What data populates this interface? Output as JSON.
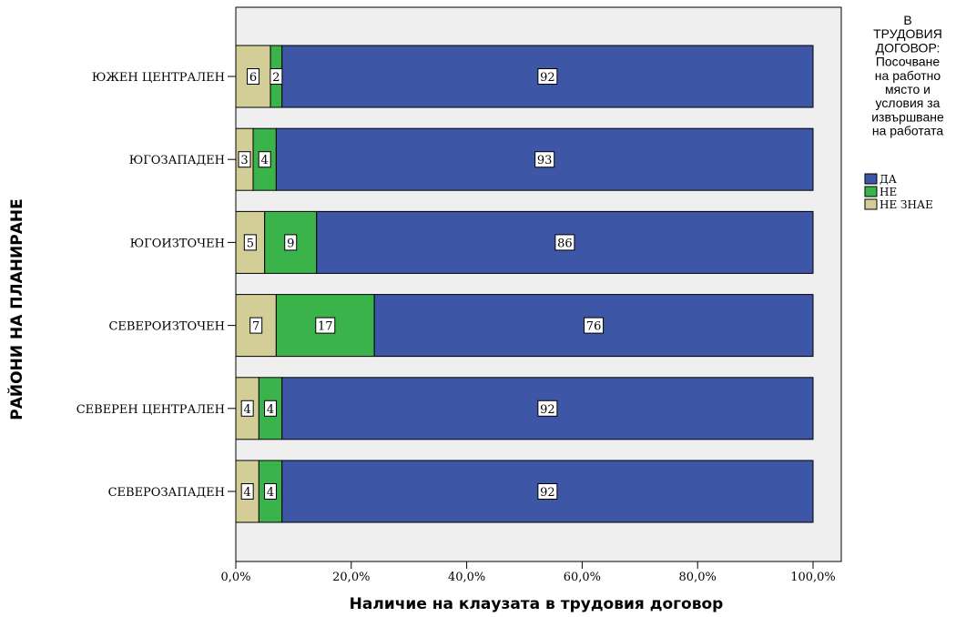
{
  "chart_data": {
    "type": "bar",
    "orientation": "horizontal",
    "stacked": "percent",
    "xlabel": "Наличие на клаузата в трудовия договор",
    "ylabel": "РАЙОНИ НА ПЛАНИРАНЕ",
    "xlim": [
      0,
      100
    ],
    "x_ticks": [
      "0,0%",
      "20,0%",
      "40,0%",
      "60,0%",
      "80,0%",
      "100,0%"
    ],
    "categories": [
      "ЮЖЕН ЦЕНТРАЛЕН",
      "ЮГОЗАПАДЕН",
      "ЮГОИЗТОЧЕН",
      "СЕВЕРОИЗТОЧЕН",
      "СЕВЕРЕН ЦЕНТРАЛЕН",
      "СЕВЕРОЗАПАДЕН"
    ],
    "series": [
      {
        "name": "НЕ ЗНАЕ",
        "color": "#d3ce97",
        "values": [
          6,
          3,
          5,
          7,
          4,
          4
        ]
      },
      {
        "name": "НЕ",
        "color": "#3ab34a",
        "values": [
          2,
          4,
          9,
          17,
          4,
          4
        ]
      },
      {
        "name": "ДА",
        "color": "#3d56a6",
        "values": [
          92,
          93,
          86,
          76,
          92,
          92
        ]
      }
    ],
    "legend": {
      "title_lines": [
        "В",
        "ТРУДОВИЯ",
        "ДОГОВОР:",
        "Посочване",
        "на работно",
        "място и",
        "условия за",
        "извършване",
        "на работата"
      ],
      "order": [
        "ДА",
        "НЕ",
        "НЕ ЗНАЕ"
      ],
      "position": "right"
    },
    "grid": false,
    "plot_background": "#efefef"
  }
}
